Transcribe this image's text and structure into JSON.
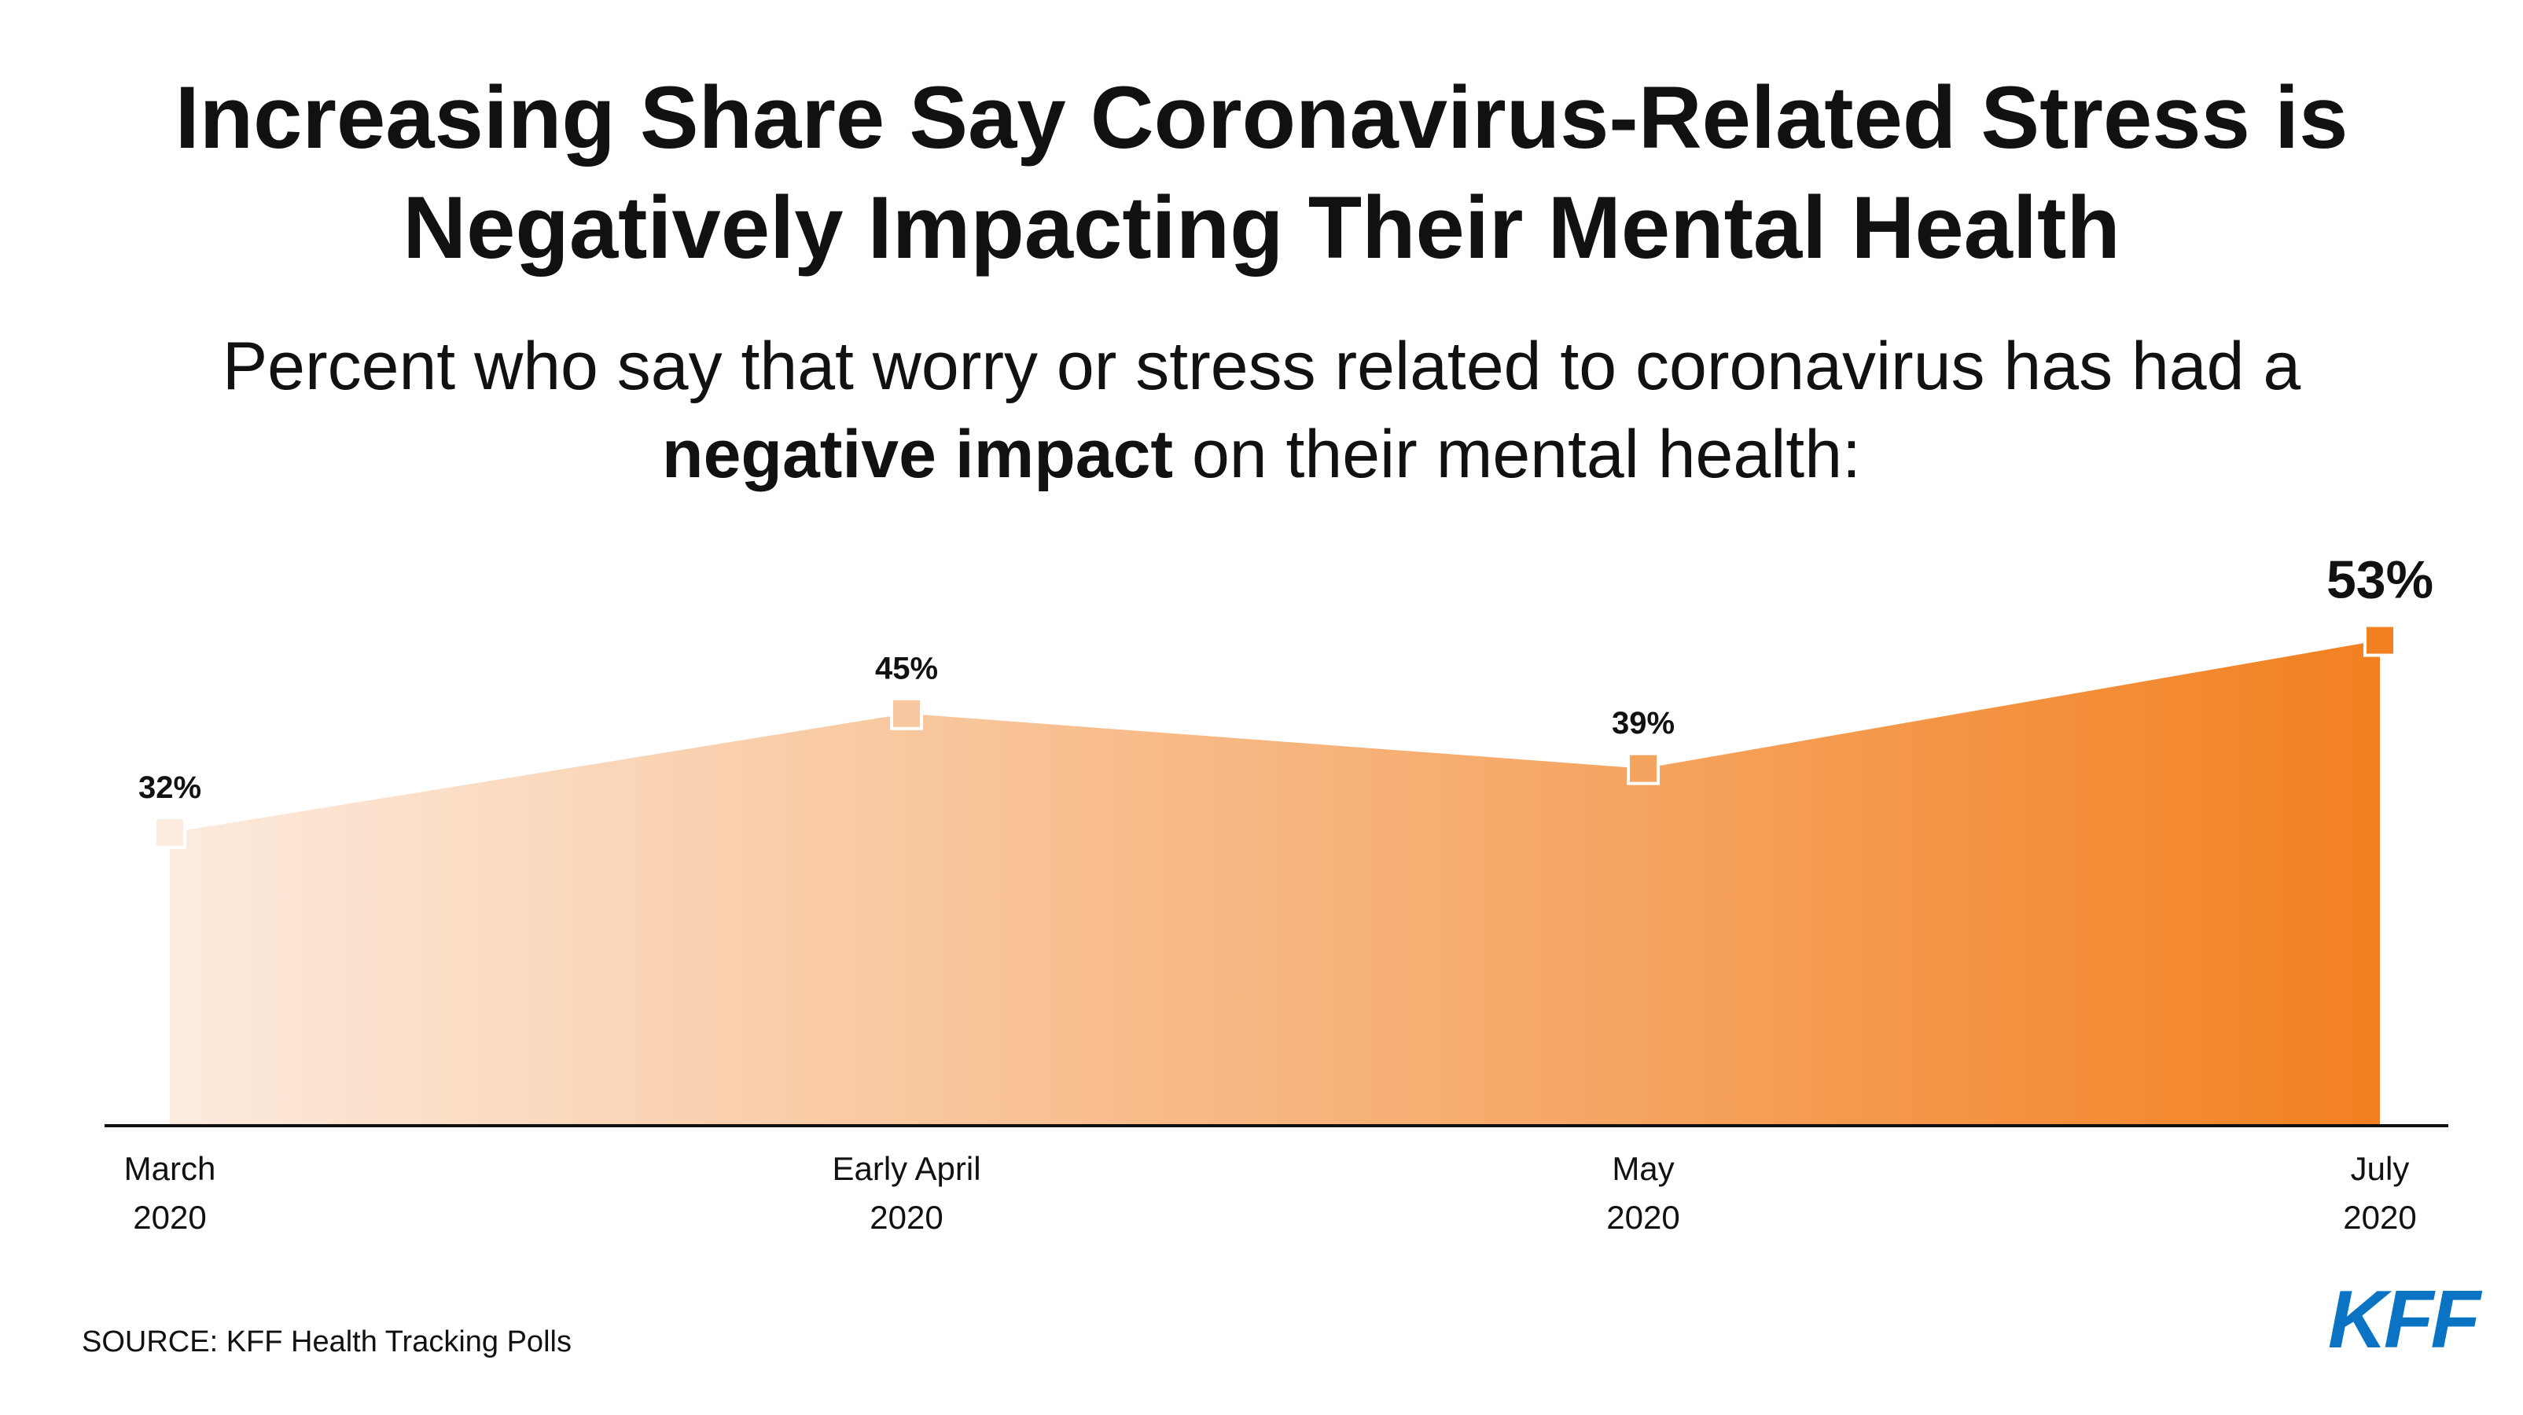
{
  "chart_data": {
    "type": "area",
    "title": "Increasing Share Say Coronavirus-Related Stress is Negatively Impacting Their Mental Health",
    "subtitle": [
      "Percent who say that worry or stress related to coronavirus has had a",
      "negative impact",
      "on their mental health:"
    ],
    "categories": [
      "March\n2020",
      "Early April\n2020",
      "May\n2020",
      "July\n2020"
    ],
    "values": [
      32,
      45,
      39,
      53
    ],
    "value_labels": [
      "32%",
      "45%",
      "39%",
      "53%"
    ],
    "color": "#f28020",
    "color_start": "#fcebde",
    "ylim": [
      0,
      60
    ],
    "source": "SOURCE: KFF Health Tracking Polls",
    "logo": "KFF"
  }
}
